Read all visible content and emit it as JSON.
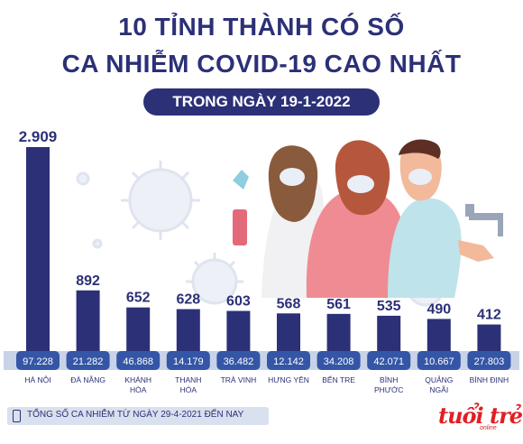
{
  "header": {
    "title_line1": "10 TỈNH THÀNH CÓ SỐ",
    "title_line2": "CA NHIỄM COVID-19 CAO NHẤT",
    "date_pill": "TRONG NGÀY 19-1-2022"
  },
  "legend": {
    "label": "TỔNG SỐ CA NHIỄM TỪ NGÀY 29-4-2021 ĐẾN NAY"
  },
  "brand": {
    "logo_text": "tuổi trẻ",
    "logo_sub": "online"
  },
  "colors": {
    "bar": "#2b3077",
    "total_pill": "#3556a6",
    "title": "#2b3077",
    "baseline": "#c9d3e8",
    "logo": "#e01f25"
  },
  "chart_data": {
    "type": "bar",
    "categories": [
      "HÀ NỘI",
      "ĐÀ NẴNG",
      "KHÁNH HÒA",
      "THANH HÓA",
      "TRÀ VINH",
      "HƯNG YÊN",
      "BẾN TRE",
      "BÌNH PHƯỚC",
      "QUẢNG NGÃI",
      "BÌNH ĐỊNH"
    ],
    "category_lines": [
      [
        "HÀ NỘI"
      ],
      [
        "ĐÀ NẴNG"
      ],
      [
        "KHÁNH",
        "HÒA"
      ],
      [
        "THANH",
        "HÓA"
      ],
      [
        "TRÀ VINH"
      ],
      [
        "HƯNG YÊN"
      ],
      [
        "BẾN TRE"
      ],
      [
        "BÌNH",
        "PHƯỚC"
      ],
      [
        "QUẢNG",
        "NGÃI"
      ],
      [
        "BÌNH ĐỊNH"
      ]
    ],
    "values": [
      2909,
      892,
      652,
      628,
      603,
      568,
      561,
      535,
      490,
      412
    ],
    "value_labels": [
      "2.909",
      "892",
      "652",
      "628",
      "603",
      "568",
      "561",
      "535",
      "490",
      "412"
    ],
    "totals": [
      97228,
      21282,
      46868,
      14179,
      36482,
      12142,
      34208,
      42071,
      10667,
      27803
    ],
    "total_labels": [
      "97.228",
      "21.282",
      "46.868",
      "14.179",
      "36.482",
      "12.142",
      "34.208",
      "42.071",
      "10.667",
      "27.803"
    ],
    "ylim": [
      0,
      2909
    ]
  }
}
